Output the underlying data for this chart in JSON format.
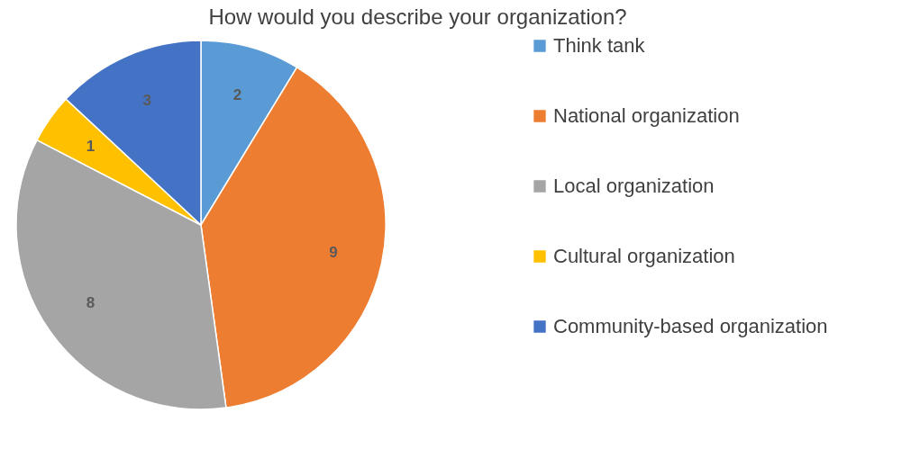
{
  "chart_data": {
    "type": "pie",
    "title": "How would you describe your organization?",
    "categories": [
      "Think tank",
      "National organization",
      "Local organization",
      "Cultural organization",
      "Community-based organization"
    ],
    "values": [
      2,
      9,
      8,
      1,
      3
    ],
    "colors": [
      "#5b9bd5",
      "#ed7d31",
      "#a5a5a5",
      "#ffc000",
      "#4472c4"
    ],
    "data_labels": true,
    "legend": "right"
  }
}
